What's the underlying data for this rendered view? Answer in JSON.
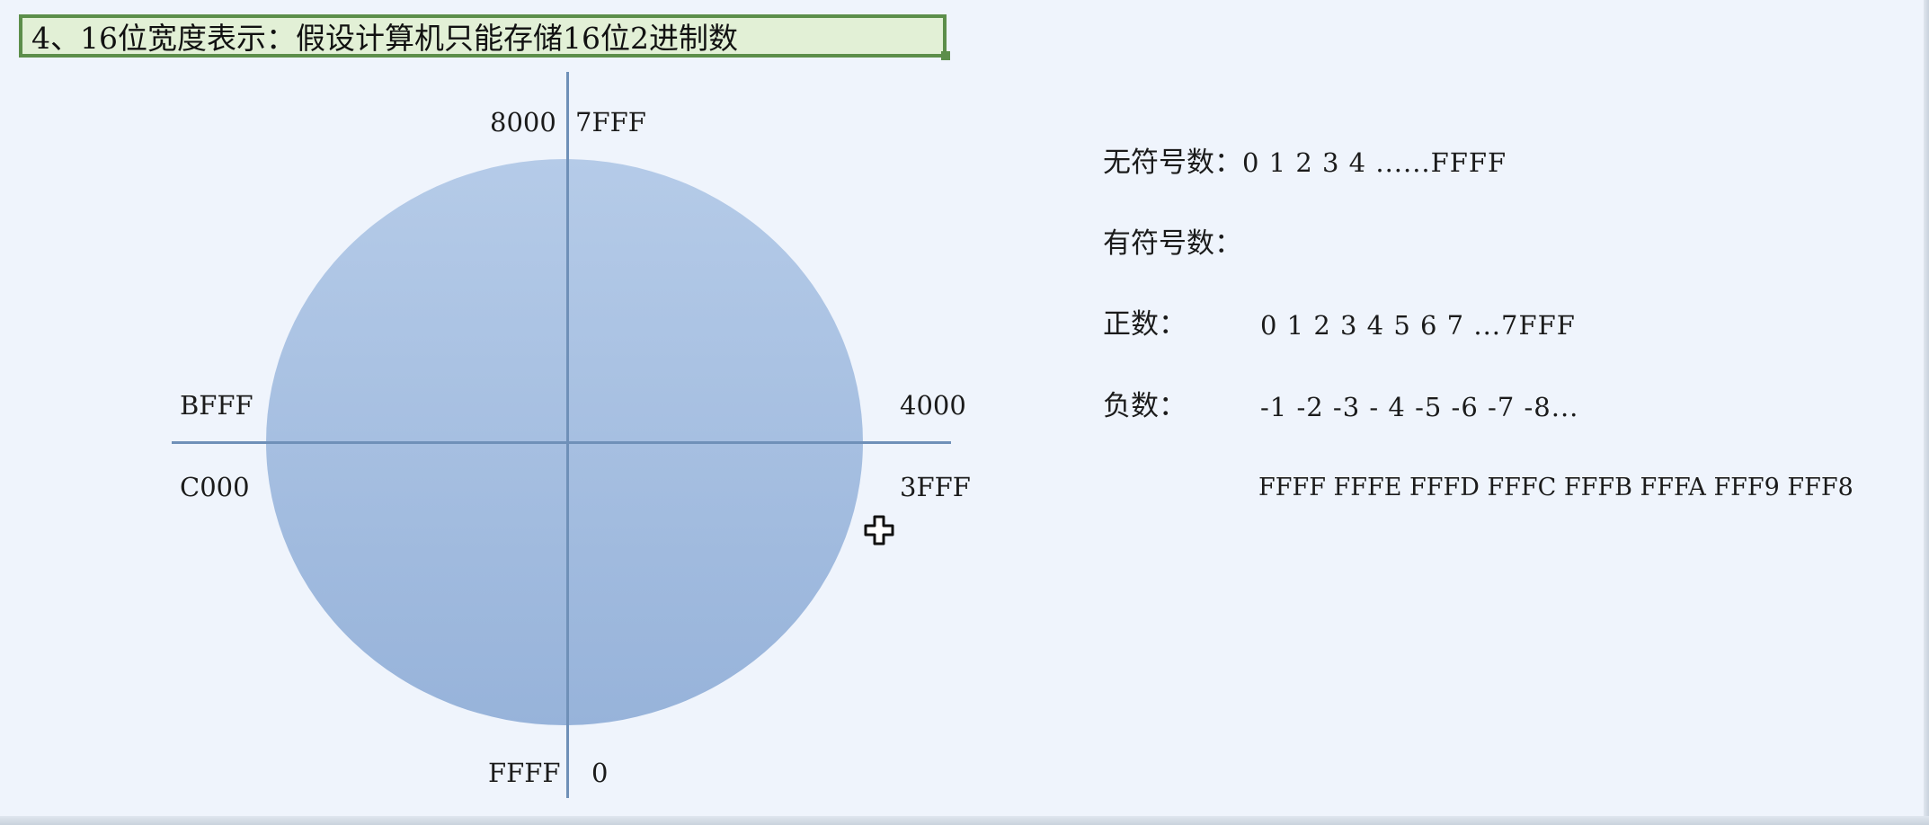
{
  "slide": {
    "title": "4、16位宽度表示：假设计算机只能存储16位2进制数"
  },
  "circle_labels": {
    "top_left": "8000",
    "top_right": "7FFF",
    "left_upper": "BFFF",
    "left_lower": "C000",
    "right_upper": "4000",
    "right_lower": "3FFF",
    "bottom_left": "FFFF",
    "bottom_right": "0"
  },
  "info": {
    "unsigned_label": "无符号数：",
    "unsigned_seq": "0 1 2 3 4 ......FFFF",
    "signed_label": "有符号数：",
    "positive_label": "正数：",
    "positive_seq": "0 1 2 3 4 5 6 7 ...7FFF",
    "negative_label": "负数：",
    "negative_seq": "-1 -2 -3 - 4 -5 -6 -7 -8...",
    "negative_hex_seq": "FFFF FFFE FFFD FFFC FFFB FFFA FFF9 FFF8"
  },
  "icons": {
    "cursor": "move-cursor-icon"
  },
  "colors": {
    "title_border": "#5c8e4a",
    "title_fill": "#e2f0d6",
    "circle_fill": "#a6bfe1",
    "axis": "#6f90b8",
    "background": "#eff4fc"
  }
}
